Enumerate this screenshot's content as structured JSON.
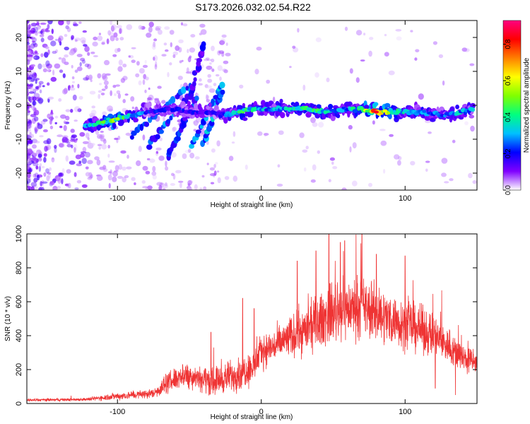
{
  "title": "S173.2026.032.02.54.R22",
  "chart_data": [
    {
      "type": "heatmap",
      "name": "spectrogram",
      "xlabel": "Height of straight line (km)",
      "ylabel": "Frequency (Hz)",
      "xlim": [
        -163,
        150
      ],
      "ylim": [
        -25,
        25
      ],
      "xticks": [
        -100,
        0,
        100
      ],
      "yticks": [
        -20,
        -10,
        0,
        10,
        20
      ],
      "xtick_labels": [
        "-100",
        "0",
        "100"
      ],
      "ytick_labels": [
        "-20",
        "-10",
        "0",
        "10",
        "20"
      ],
      "colorbar": {
        "label": "Normalized spectral amplitude",
        "range": [
          0,
          0.93
        ],
        "ticks": [
          0.0,
          0.2,
          0.4,
          0.6,
          0.8
        ],
        "tick_labels": [
          "0.0",
          "0.2",
          "0.4",
          "0.6",
          "0.8"
        ],
        "colormap": [
          "#ffffff",
          "#8000ff",
          "#0000ff",
          "#00c0ff",
          "#00ff80",
          "#80ff00",
          "#ffff00",
          "#ff8000",
          "#ff0000",
          "#ff0080"
        ]
      },
      "main_band": [
        {
          "x": -122,
          "f": -6,
          "a": 0.3
        },
        {
          "x": -110,
          "f": -5,
          "a": 0.5
        },
        {
          "x": -100,
          "f": -4,
          "a": 0.55
        },
        {
          "x": -90,
          "f": -3,
          "a": 0.35
        },
        {
          "x": -80,
          "f": -2,
          "a": 0.25
        },
        {
          "x": -65,
          "f": -1,
          "a": 0.2
        },
        {
          "x": -50,
          "f": -2,
          "a": 0.22
        },
        {
          "x": -35,
          "f": -2,
          "a": 0.18
        },
        {
          "x": -25,
          "f": -3,
          "a": 0.25
        },
        {
          "x": -15,
          "f": -2,
          "a": 0.45
        },
        {
          "x": -5,
          "f": -1,
          "a": 0.4
        },
        {
          "x": 5,
          "f": -1,
          "a": 0.3
        },
        {
          "x": 20,
          "f": -1,
          "a": 0.4
        },
        {
          "x": 30,
          "f": -1,
          "a": 0.45
        },
        {
          "x": 45,
          "f": -2,
          "a": 0.4
        },
        {
          "x": 60,
          "f": -1,
          "a": 0.35
        },
        {
          "x": 70,
          "f": -1,
          "a": 0.45
        },
        {
          "x": 80,
          "f": -2,
          "a": 0.85
        },
        {
          "x": 95,
          "f": -2,
          "a": 0.4
        },
        {
          "x": 110,
          "f": -2,
          "a": 0.35
        },
        {
          "x": 125,
          "f": -3,
          "a": 0.3
        },
        {
          "x": 140,
          "f": -2,
          "a": 0.35
        },
        {
          "x": 148,
          "f": -1,
          "a": 0.3
        }
      ],
      "streaks": [
        {
          "x0": -90,
          "f0": -9,
          "x1": -50,
          "f1": 6,
          "a": 0.3
        },
        {
          "x0": -78,
          "f0": -12,
          "x1": -47,
          "f1": 5,
          "a": 0.28
        },
        {
          "x0": -65,
          "f0": -15,
          "x1": -45,
          "f1": 2,
          "a": 0.25
        },
        {
          "x0": -55,
          "f0": -7,
          "x1": -40,
          "f1": 18,
          "a": 0.2
        },
        {
          "x0": -48,
          "f0": -12,
          "x1": -28,
          "f1": 6,
          "a": 0.3
        },
        {
          "x0": -40,
          "f0": -11,
          "x1": -27,
          "f1": 4,
          "a": 0.32
        }
      ]
    },
    {
      "type": "line",
      "name": "snr",
      "xlabel": "Height of straight line (km)",
      "ylabel": "SNR (10 * v/v)",
      "xlim": [
        -163,
        150
      ],
      "ylim": [
        0,
        1000
      ],
      "xticks": [
        -100,
        0,
        100
      ],
      "yticks": [
        0,
        200,
        400,
        600,
        800,
        1000
      ],
      "xtick_labels": [
        "-100",
        "0",
        "100"
      ],
      "ytick_labels": [
        "0",
        "200",
        "400",
        "600",
        "800",
        "1000"
      ],
      "color": "#ef3434",
      "envelope": [
        {
          "x": -163,
          "mean": 20,
          "spread": 12
        },
        {
          "x": -140,
          "mean": 22,
          "spread": 12
        },
        {
          "x": -120,
          "mean": 25,
          "spread": 14
        },
        {
          "x": -105,
          "mean": 40,
          "spread": 30
        },
        {
          "x": -90,
          "mean": 50,
          "spread": 35
        },
        {
          "x": -75,
          "mean": 60,
          "spread": 40
        },
        {
          "x": -65,
          "mean": 120,
          "spread": 90
        },
        {
          "x": -55,
          "mean": 170,
          "spread": 110
        },
        {
          "x": -45,
          "mean": 160,
          "spread": 110
        },
        {
          "x": -35,
          "mean": 130,
          "spread": 120
        },
        {
          "x": -25,
          "mean": 150,
          "spread": 130
        },
        {
          "x": -15,
          "mean": 180,
          "spread": 150
        },
        {
          "x": -5,
          "mean": 220,
          "spread": 150
        },
        {
          "x": 0,
          "mean": 310,
          "spread": 140
        },
        {
          "x": 10,
          "mean": 340,
          "spread": 150
        },
        {
          "x": 20,
          "mean": 390,
          "spread": 180
        },
        {
          "x": 30,
          "mean": 430,
          "spread": 200
        },
        {
          "x": 40,
          "mean": 480,
          "spread": 230
        },
        {
          "x": 50,
          "mean": 540,
          "spread": 260
        },
        {
          "x": 60,
          "mean": 560,
          "spread": 260
        },
        {
          "x": 70,
          "mean": 570,
          "spread": 250
        },
        {
          "x": 80,
          "mean": 530,
          "spread": 240
        },
        {
          "x": 90,
          "mean": 500,
          "spread": 220
        },
        {
          "x": 100,
          "mean": 470,
          "spread": 220
        },
        {
          "x": 110,
          "mean": 440,
          "spread": 200
        },
        {
          "x": 120,
          "mean": 400,
          "spread": 180
        },
        {
          "x": 130,
          "mean": 340,
          "spread": 160
        },
        {
          "x": 140,
          "mean": 270,
          "spread": 130
        },
        {
          "x": 150,
          "mean": 240,
          "spread": 110
        }
      ],
      "peaks": [
        {
          "x": 47,
          "y": 1000
        },
        {
          "x": 58,
          "y": 960
        },
        {
          "x": 70,
          "y": 1000
        },
        {
          "x": 55,
          "y": 950
        },
        {
          "x": 38,
          "y": 900
        },
        {
          "x": 80,
          "y": 880
        },
        {
          "x": 25,
          "y": 840
        },
        {
          "x": 100,
          "y": 870
        },
        {
          "x": -13,
          "y": 620
        },
        {
          "x": -35,
          "y": 420
        },
        {
          "x": -5,
          "y": 560
        },
        {
          "x": 135,
          "y": 50
        },
        {
          "x": 121,
          "y": 90
        }
      ]
    }
  ]
}
